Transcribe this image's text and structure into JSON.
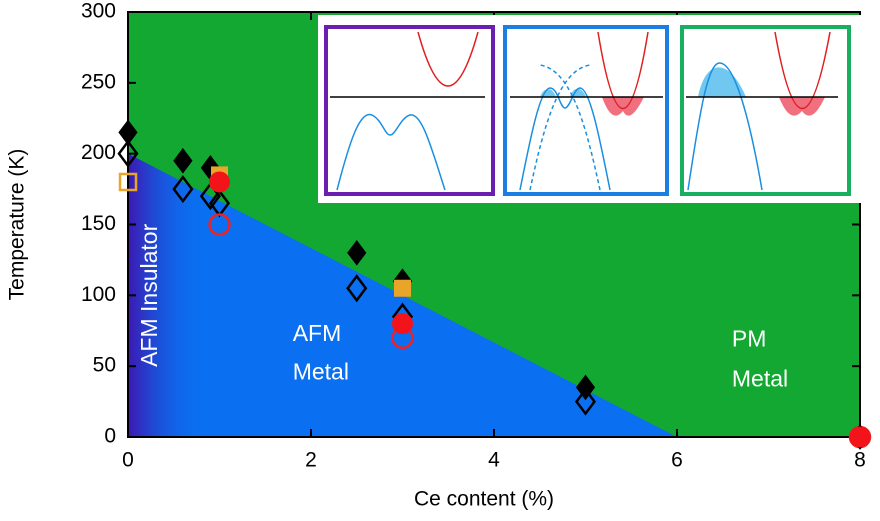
{
  "chart_data": {
    "type": "scatter",
    "xlabel": "Ce content (%)",
    "ylabel": "Temperature (K)",
    "xlim": [
      0,
      8
    ],
    "ylim": [
      0,
      300
    ],
    "xticks": [
      0,
      2,
      4,
      6,
      8
    ],
    "yticks": [
      0,
      50,
      100,
      150,
      200,
      250,
      300
    ],
    "background_color": "#13a832",
    "phase_boundary": {
      "color": "#0a6ff0",
      "x": [
        0,
        6
      ],
      "values": [
        200,
        0
      ]
    },
    "annotations": [
      {
        "text": "AFM Insulator",
        "x": 0.25,
        "y": 100,
        "rotate": -90
      },
      {
        "text": "AFM",
        "x": 1.8,
        "y": 72
      },
      {
        "text": "Metal",
        "x": 1.8,
        "y": 45
      },
      {
        "text": "PM",
        "x": 6.6,
        "y": 68
      },
      {
        "text": "Metal",
        "x": 6.6,
        "y": 40
      }
    ],
    "series": [
      {
        "marker": "diamond",
        "filled": true,
        "color": "#000000",
        "x": [
          0,
          0.6,
          0.9,
          2.5,
          3,
          5,
          8
        ],
        "values": [
          215,
          195,
          190,
          130,
          110,
          35,
          0
        ]
      },
      {
        "marker": "diamond",
        "filled": false,
        "color": "#000000",
        "x": [
          0,
          0.6,
          0.9,
          1,
          2.5,
          3,
          5
        ],
        "values": [
          200,
          175,
          170,
          165,
          105,
          85,
          25
        ]
      },
      {
        "marker": "square",
        "filled": true,
        "color": "#e8a52a",
        "x": [
          1,
          3
        ],
        "values": [
          185,
          105
        ]
      },
      {
        "marker": "square",
        "filled": false,
        "color": "#e8a52a",
        "x": [
          0
        ],
        "values": [
          180
        ]
      },
      {
        "marker": "circle",
        "filled": false,
        "color": "#e8242a",
        "x": [
          1,
          3,
          8
        ],
        "values": [
          150,
          70,
          0
        ]
      },
      {
        "marker": "circle",
        "filled": true,
        "color": "#f2141a",
        "x": [
          1,
          3,
          8
        ],
        "values": [
          180,
          80,
          0
        ]
      }
    ]
  }
}
